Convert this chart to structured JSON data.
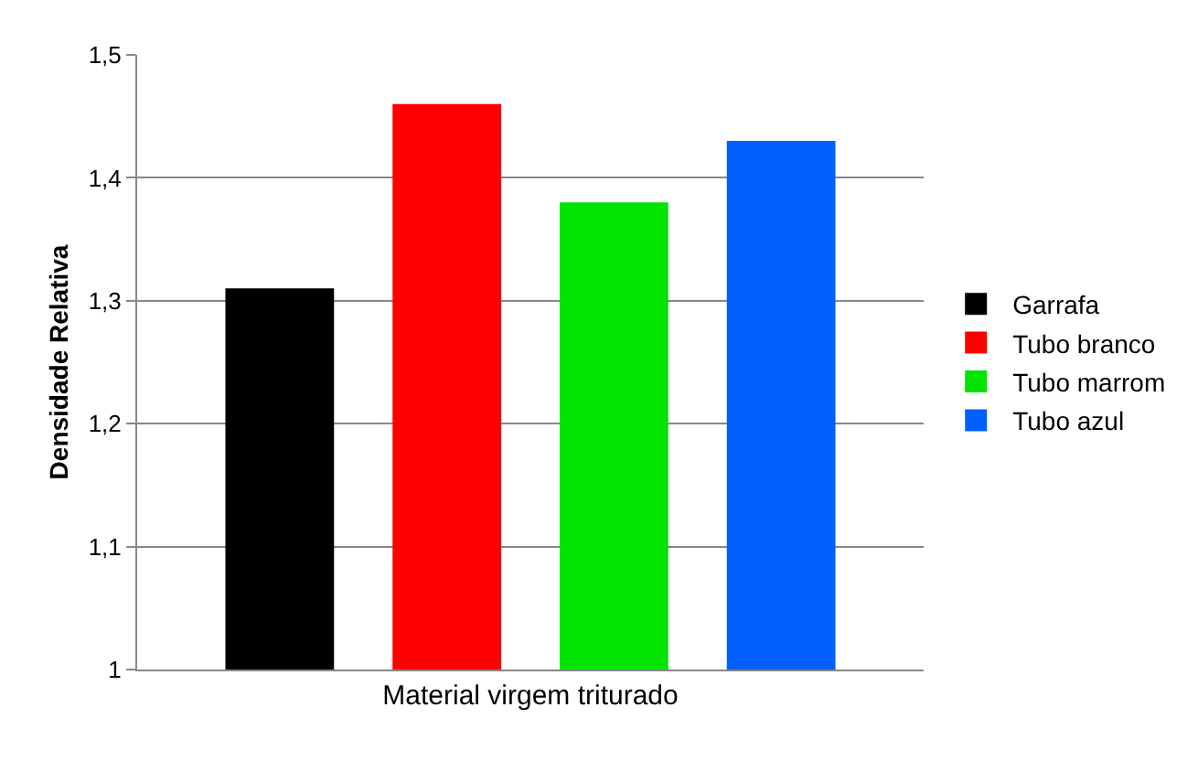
{
  "chart_data": {
    "type": "bar",
    "ylabel": "Densidade Relativa",
    "categories": [
      "Material virgem triturado"
    ],
    "series": [
      {
        "name": "Garrafa",
        "color": "#000000",
        "values": [
          1.31
        ]
      },
      {
        "name": "Tubo branco",
        "color": "#ff0000",
        "values": [
          1.46
        ]
      },
      {
        "name": "Tubo marrom",
        "color": "#00e400",
        "values": [
          1.38
        ]
      },
      {
        "name": "Tubo azul",
        "color": "#0060ff",
        "values": [
          1.43
        ]
      }
    ],
    "ylim": [
      1,
      1.5
    ],
    "yticks": [
      {
        "value": 1,
        "label": "1"
      },
      {
        "value": 1.1,
        "label": "1,1"
      },
      {
        "value": 1.2,
        "label": "1,2"
      },
      {
        "value": 1.3,
        "label": "1,3"
      },
      {
        "value": 1.4,
        "label": "1,4"
      },
      {
        "value": 1.5,
        "label": "1,5"
      }
    ],
    "grid": "y",
    "legend": "right"
  }
}
